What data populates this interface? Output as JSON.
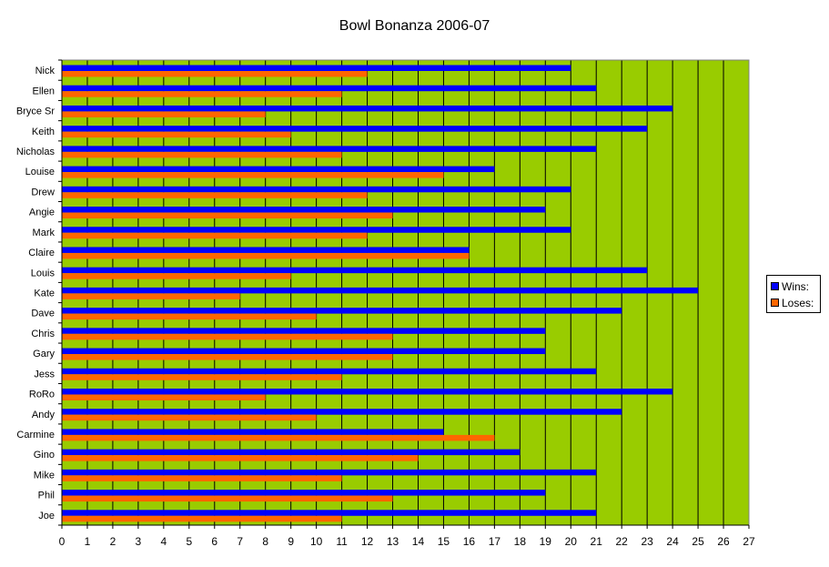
{
  "chart_data": {
    "type": "bar",
    "orientation": "horizontal",
    "title": "Bowl Bonanza 2006-07",
    "categories": [
      "Nick",
      "Ellen",
      "Bryce Sr",
      "Keith",
      "Nicholas",
      "Louise",
      "Drew",
      "Angie",
      "Mark",
      "Claire",
      "Louis",
      "Kate",
      "Dave",
      "Chris",
      "Gary",
      "Jess",
      "RoRo",
      "Andy",
      "Carmine",
      "Gino",
      "Mike",
      "Phil",
      "Joe"
    ],
    "series": [
      {
        "name": "Wins:",
        "color": "#0000ff",
        "values": [
          20,
          21,
          24,
          23,
          21,
          17,
          20,
          19,
          20,
          16,
          23,
          25,
          22,
          19,
          19,
          21,
          24,
          22,
          15,
          18,
          21,
          19,
          21
        ]
      },
      {
        "name": "Loses:",
        "color": "#ff6600",
        "values": [
          12,
          11,
          8,
          9,
          11,
          15,
          12,
          13,
          12,
          16,
          9,
          7,
          10,
          13,
          13,
          11,
          8,
          10,
          17,
          14,
          11,
          13,
          11
        ]
      }
    ],
    "xlim": [
      0,
      27
    ],
    "x_ticks": [
      "0",
      "1",
      "2",
      "3",
      "4",
      "5",
      "6",
      "7",
      "8",
      "9",
      "10",
      "11",
      "12",
      "13",
      "14",
      "15",
      "16",
      "17",
      "18",
      "19",
      "20",
      "21",
      "22",
      "23",
      "24",
      "25",
      "26",
      "27"
    ],
    "grid": true,
    "plot_background": "#99cc00",
    "legend_position": "right"
  }
}
